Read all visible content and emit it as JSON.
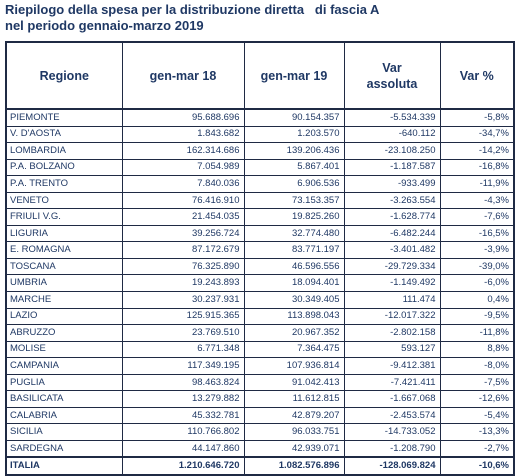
{
  "title": {
    "line1": "Riepilogo della spesa per la distribuzione diretta   di fascia A",
    "line2": "nel periodo gennaio-marzo 2019"
  },
  "table": {
    "headers": [
      "Regione",
      "gen-mar 18",
      "gen-mar 19",
      "Var\nassoluta",
      "Var %"
    ],
    "rows": [
      [
        "PIEMONTE",
        "95.688.696",
        "90.154.357",
        "-5.534.339",
        "-5,8%"
      ],
      [
        "V. D'AOSTA",
        "1.843.682",
        "1.203.570",
        "-640.112",
        "-34,7%"
      ],
      [
        "LOMBARDIA",
        "162.314.686",
        "139.206.436",
        "-23.108.250",
        "-14,2%"
      ],
      [
        "P.A. BOLZANO",
        "7.054.989",
        "5.867.401",
        "-1.187.587",
        "-16,8%"
      ],
      [
        "P.A. TRENTO",
        "7.840.036",
        "6.906.536",
        "-933.499",
        "-11,9%"
      ],
      [
        "VENETO",
        "76.416.910",
        "73.153.357",
        "-3.263.554",
        "-4,3%"
      ],
      [
        "FRIULI V.G.",
        "21.454.035",
        "19.825.260",
        "-1.628.774",
        "-7,6%"
      ],
      [
        "LIGURIA",
        "39.256.724",
        "32.774.480",
        "-6.482.244",
        "-16,5%"
      ],
      [
        "E. ROMAGNA",
        "87.172.679",
        "83.771.197",
        "-3.401.482",
        "-3,9%"
      ],
      [
        "TOSCANA",
        "76.325.890",
        "46.596.556",
        "-29.729.334",
        "-39,0%"
      ],
      [
        "UMBRIA",
        "19.243.893",
        "18.094.401",
        "-1.149.492",
        "-6,0%"
      ],
      [
        "MARCHE",
        "30.237.931",
        "30.349.405",
        "111.474",
        "0,4%"
      ],
      [
        "LAZIO",
        "125.915.365",
        "113.898.043",
        "-12.017.322",
        "-9,5%"
      ],
      [
        "ABRUZZO",
        "23.769.510",
        "20.967.352",
        "-2.802.158",
        "-11,8%"
      ],
      [
        "MOLISE",
        "6.771.348",
        "7.364.475",
        "593.127",
        "8,8%"
      ],
      [
        "CAMPANIA",
        "117.349.195",
        "107.936.814",
        "-9.412.381",
        "-8,0%"
      ],
      [
        "PUGLIA",
        "98.463.824",
        "91.042.413",
        "-7.421.411",
        "-7,5%"
      ],
      [
        "BASILICATA",
        "13.279.882",
        "11.612.815",
        "-1.667.068",
        "-12,6%"
      ],
      [
        "CALABRIA",
        "45.332.781",
        "42.879.207",
        "-2.453.574",
        "-5,4%"
      ],
      [
        "SICILIA",
        "110.766.802",
        "96.033.751",
        "-14.733.052",
        "-13,3%"
      ],
      [
        "SARDEGNA",
        "44.147.860",
        "42.939.071",
        "-1.208.790",
        "-2,7%"
      ]
    ],
    "total": [
      "ITALIA",
      "1.210.646.720",
      "1.082.576.896",
      "-128.069.824",
      "-10,6%"
    ]
  }
}
